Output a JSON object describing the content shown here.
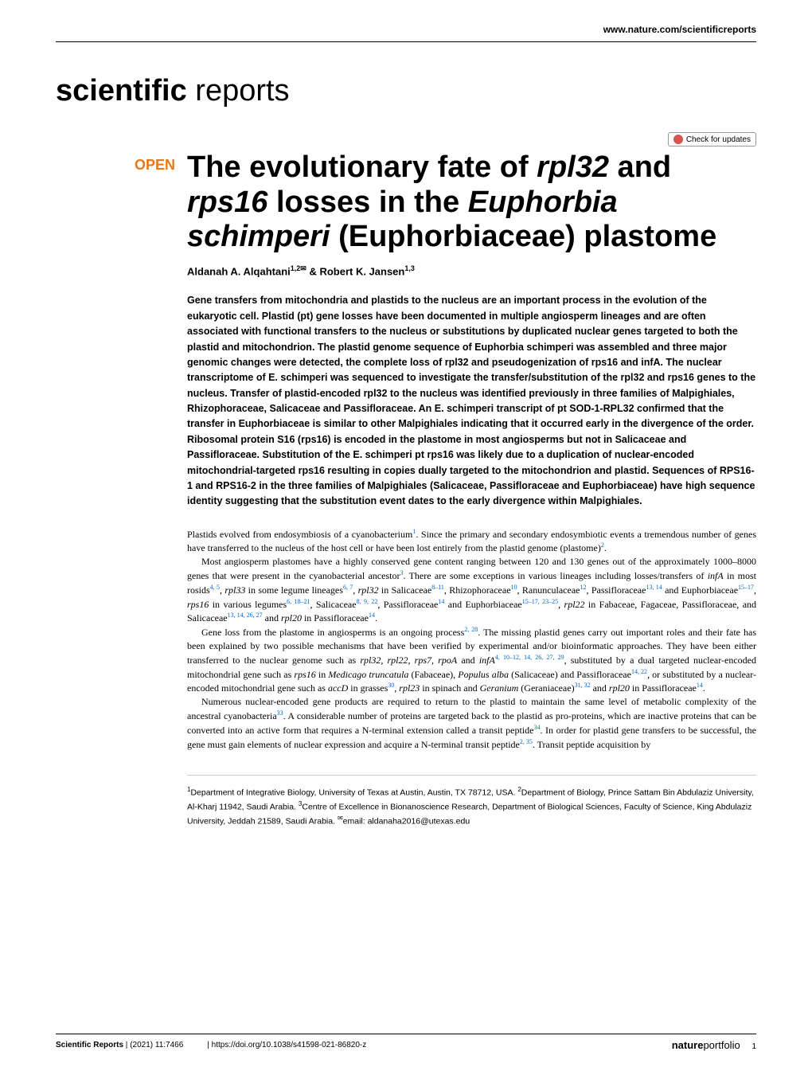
{
  "header": {
    "url": "www.nature.com/scientificreports"
  },
  "journal": {
    "name_bold": "scientific",
    "name_light": " reports"
  },
  "checkUpdates": {
    "label": "Check for updates"
  },
  "openAccess": {
    "label": "OPEN"
  },
  "title": {
    "part1": "The evolutionary fate of ",
    "italic1": "rpl32",
    "part2": " and ",
    "italic2": "rps16",
    "part3": " losses in the ",
    "italic3": "Euphorbia schimperi",
    "part4": " (Euphorbiaceae) plastome"
  },
  "authors": {
    "text": "Aldanah A. Alqahtani",
    "sup1": "1,2✉",
    "amp": " & Robert K. Jansen",
    "sup2": "1,3"
  },
  "abstract": {
    "text": "Gene transfers from mitochondria and plastids to the nucleus are an important process in the evolution of the eukaryotic cell. Plastid (pt) gene losses have been documented in multiple angiosperm lineages and are often associated with functional transfers to the nucleus or substitutions by duplicated nuclear genes targeted to both the plastid and mitochondrion. The plastid genome sequence of Euphorbia schimperi was assembled and three major genomic changes were detected, the complete loss of rpl32 and pseudogenization of rps16 and infA. The nuclear transcriptome of E. schimperi was sequenced to investigate the transfer/substitution of the rpl32 and rps16 genes to the nucleus. Transfer of plastid-encoded rpl32 to the nucleus was identified previously in three families of Malpighiales, Rhizophoraceae, Salicaceae and Passifloraceae. An E. schimperi transcript of pt SOD-1-RPL32 confirmed that the transfer in Euphorbiaceae is similar to other Malpighiales indicating that it occurred early in the divergence of the order. Ribosomal protein S16 (rps16) is encoded in the plastome in most angiosperms but not in Salicaceae and Passifloraceae. Substitution of the E. schimperi pt rps16 was likely due to a duplication of nuclear-encoded mitochondrial-targeted rps16 resulting in copies dually targeted to the mitochondrion and plastid. Sequences of RPS16-1 and RPS16-2 in the three families of Malpighiales (Salicaceae, Passifloraceae and Euphorbiaceae) have high sequence identity suggesting that the substitution event dates to the early divergence within Malpighiales."
  },
  "body": {
    "p1_a": "Plastids evolved from endosymbiosis of a cyanobacterium",
    "p1_sup1": "1",
    "p1_b": ". Since the primary and secondary endosymbiotic events a tremendous number of genes have transferred to the nucleus of the host cell or have been lost entirely from the plastid genome (plastome)",
    "p1_sup2": "2",
    "p1_c": ".",
    "p2_a": "Most angiosperm plastomes have a highly conserved gene content ranging between 120 and 130 genes out of the approximately 1000–8000 genes that were present in the cyanobacterial ancestor",
    "p2_sup1": "3",
    "p2_b": ". There are some exceptions in various lineages including losses/transfers of ",
    "p2_it1": "infA",
    "p2_c": " in most rosids",
    "p2_sup2": "4, 5",
    "p2_d": ", ",
    "p2_it2": "rpl33",
    "p2_e": " in some legume lineages",
    "p2_sup3": "6, 7",
    "p2_f": ", ",
    "p2_it3": "rpl32",
    "p2_g": " in Salicaceae",
    "p2_sup4": "8–11",
    "p2_h": ", Rhizophoraceae",
    "p2_sup5": "10",
    "p2_i": ", Ranunculaceae",
    "p2_sup6": "12",
    "p2_j": ", Passifloraceae",
    "p2_sup7": "13, 14",
    "p2_k": " and Euphorbiaceae",
    "p2_sup8": "15–17",
    "p2_l": ", ",
    "p2_it4": "rps16",
    "p2_m": " in various legumes",
    "p2_sup9": "6, 18–21",
    "p2_n": ", Salicaceae",
    "p2_sup10": "8, 9, 22",
    "p2_o": ", Passifloraceae",
    "p2_sup11": "14",
    "p2_p": " and Euphorbiaceae",
    "p2_sup12": "15–17, 23–25",
    "p2_q": ", ",
    "p2_it5": "rpl22",
    "p2_r": " in Fabaceae, Fagaceae, Passifloraceae, and Salicaceae",
    "p2_sup13": "13, 14, 26, 27",
    "p2_s": " and ",
    "p2_it6": "rpl20",
    "p2_t": " in Passifloraceae",
    "p2_sup14": "14",
    "p2_u": ".",
    "p3_a": "Gene loss from the plastome in angiosperms is an ongoing process",
    "p3_sup1": "2, 28",
    "p3_b": ". The missing plastid genes carry out important roles and their fate has been explained by two possible mechanisms that have been verified by experimental and/or bioinformatic approaches. They have been either transferred to the nuclear genome such as ",
    "p3_it1": "rpl32, rpl22, rps7, rpoA",
    "p3_c": " and ",
    "p3_it2": "infA",
    "p3_sup2": "4, 10–12, 14, 26, 27, 29",
    "p3_d": ", substituted by a dual targeted nuclear-encoded mitochondrial gene such as ",
    "p3_it3": "rps16",
    "p3_e": " in ",
    "p3_it4": "Medicago truncatula",
    "p3_f": " (Fabaceae), ",
    "p3_it5": "Populus alba",
    "p3_g": " (Salicaceae) and Passifloraceae",
    "p3_sup3": "14, 22",
    "p3_h": ", or substituted by a nuclear-encoded mitochondrial gene such as ",
    "p3_it6": "accD",
    "p3_i": " in grasses",
    "p3_sup4": "30",
    "p3_j": ", ",
    "p3_it7": "rpl23",
    "p3_k": " in spinach and ",
    "p3_it8": "Geranium",
    "p3_l": " (Geraniaceae)",
    "p3_sup5": "31, 32",
    "p3_m": " and ",
    "p3_it9": "rpl20",
    "p3_n": " in Passifloraceae",
    "p3_sup6": "14",
    "p3_o": ".",
    "p4_a": "Numerous nuclear-encoded gene products are required to return to the plastid to maintain the same level of metabolic complexity of the ancestral cyanobacteria",
    "p4_sup1": "33",
    "p4_b": ". A considerable number of proteins are targeted back to the plastid as pro-proteins, which are inactive proteins that can be converted into an active form that requires a N-terminal extension called a transit peptide",
    "p4_sup2": "34",
    "p4_c": ". In order for plastid gene transfers to be successful, the gene must gain elements of nuclear expression and acquire a N-terminal transit peptide",
    "p4_sup3": "2, 35",
    "p4_d": ". Transit peptide acquisition by"
  },
  "affiliations": {
    "sup1": "1",
    "text1": "Department of Integrative Biology, University of Texas at Austin, Austin, TX 78712, USA. ",
    "sup2": "2",
    "text2": "Department of Biology, Prince Sattam Bin Abdulaziz University, Al-Kharj 11942, Saudi Arabia. ",
    "sup3": "3",
    "text3": "Centre of Excellence in Bionanoscience Research, Department of Biological Sciences, Faculty of Science, King Abdulaziz University, Jeddah 21589, Saudi Arabia. ",
    "supEmail": "✉",
    "email": "email: aldanaha2016@utexas.edu"
  },
  "footer": {
    "journal": "Scientific Reports",
    "citation": "(2021) 11:7466",
    "doi": "https://doi.org/10.1038/s41598-021-86820-z",
    "publisher1": "nature",
    "publisher2": "portfolio",
    "pageNum": "1"
  },
  "colors": {
    "accent": "#e67817",
    "link": "#0066cc",
    "checkIcon": "#d9534f"
  }
}
